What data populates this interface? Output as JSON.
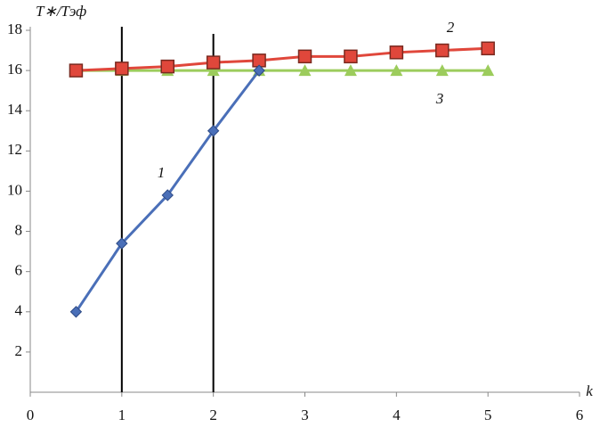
{
  "chart_data": {
    "type": "line",
    "y_label": "T∗/Tэф",
    "x_label": "k",
    "xlim": [
      0,
      6
    ],
    "xticks": [
      0,
      1,
      2,
      3,
      4,
      5,
      6
    ],
    "ylim": [
      0,
      18
    ],
    "yticks": [
      2,
      4,
      6,
      8,
      10,
      12,
      14,
      16,
      18
    ],
    "grid": false,
    "vlines": [
      1,
      2
    ],
    "series": [
      {
        "name": "1",
        "color": "#4a6fb8",
        "marker": "diamond",
        "x": [
          0.5,
          1,
          1.5,
          2,
          2.5
        ],
        "values": [
          4,
          7.4,
          9.8,
          13,
          16
        ]
      },
      {
        "name": "2",
        "color": "#e0473b",
        "marker": "square",
        "x": [
          0.5,
          1,
          1.5,
          2,
          2.5,
          3,
          3.5,
          4,
          4.5,
          5
        ],
        "values": [
          16,
          16.1,
          16.2,
          16.4,
          16.5,
          16.7,
          16.7,
          16.9,
          17.0,
          17.1
        ]
      },
      {
        "name": "3",
        "color": "#9ccc5c",
        "marker": "triangle",
        "x": [
          0.5,
          1,
          1.5,
          2,
          2.5,
          3,
          3.5,
          4,
          4.5,
          5
        ],
        "values": [
          16,
          16,
          16,
          16,
          16,
          16,
          16,
          16,
          16,
          16
        ]
      }
    ]
  }
}
